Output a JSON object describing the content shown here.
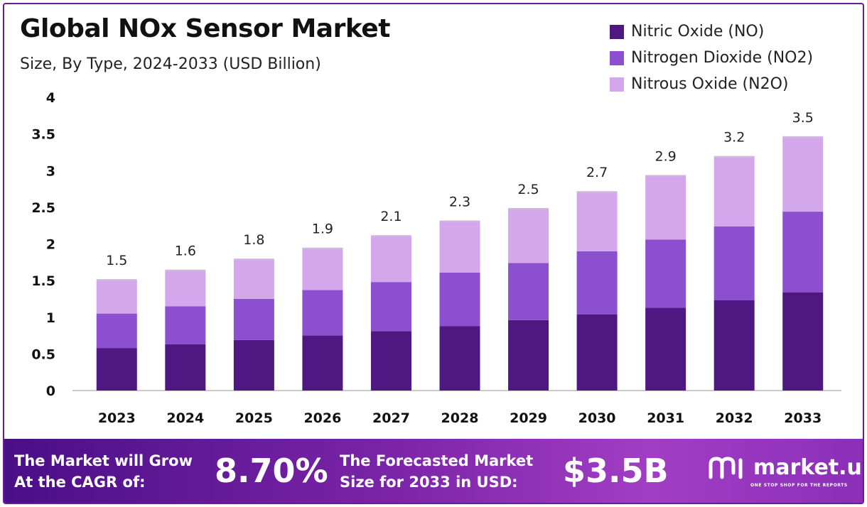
{
  "header": {
    "title": "Global NOx Sensor Market",
    "subtitle": "Size, By Type, 2024-2033 (USD Billion)"
  },
  "colors": {
    "no": "#4e1782",
    "no2": "#8b4fcf",
    "n2o": "#d4a7ec",
    "axis": "#cccccc",
    "footer_start": "#4a0f86",
    "footer_end": "#a13ec4"
  },
  "chart_data": {
    "type": "bar",
    "stacked": true,
    "categories": [
      "2023",
      "2024",
      "2025",
      "2026",
      "2027",
      "2028",
      "2029",
      "2030",
      "2031",
      "2032",
      "2033"
    ],
    "series": [
      {
        "name": "Nitric Oxide (NO)",
        "values": [
          0.58,
          0.63,
          0.69,
          0.75,
          0.81,
          0.88,
          0.96,
          1.04,
          1.13,
          1.23,
          1.34
        ]
      },
      {
        "name": "Nitrogen Dioxide (NO2)",
        "values": [
          0.47,
          0.52,
          0.56,
          0.62,
          0.67,
          0.73,
          0.78,
          0.86,
          0.93,
          1.01,
          1.1
        ]
      },
      {
        "name": "Nitrous Oxide (N2O)",
        "values": [
          0.45,
          0.48,
          0.53,
          0.56,
          0.62,
          0.69,
          0.73,
          0.8,
          0.86,
          0.94,
          1.01
        ]
      }
    ],
    "totals": [
      "1.5",
      "1.6",
      "1.8",
      "1.9",
      "2.1",
      "2.3",
      "2.5",
      "2.7",
      "2.9",
      "3.2",
      "3.5"
    ],
    "y_ticks": [
      "0",
      "0.5",
      "1",
      "1.5",
      "2",
      "2.5",
      "3",
      "3.5",
      "4"
    ],
    "ylim": [
      0,
      4
    ],
    "grid": false,
    "legend_position": "top-right"
  },
  "footer": {
    "cagr_label_line1": "The Market will Grow",
    "cagr_label_line2": "At the CAGR of:",
    "cagr_value": "8.70%",
    "forecast_label_line1": "The Forecasted Market",
    "forecast_label_line2": "Size for 2033 in USD:",
    "forecast_value": "$3.5B",
    "brand_name": "market.us",
    "brand_tagline": "ONE STOP SHOP FOR THE REPORTS",
    "brand_icon": "market-us-logo-icon"
  }
}
